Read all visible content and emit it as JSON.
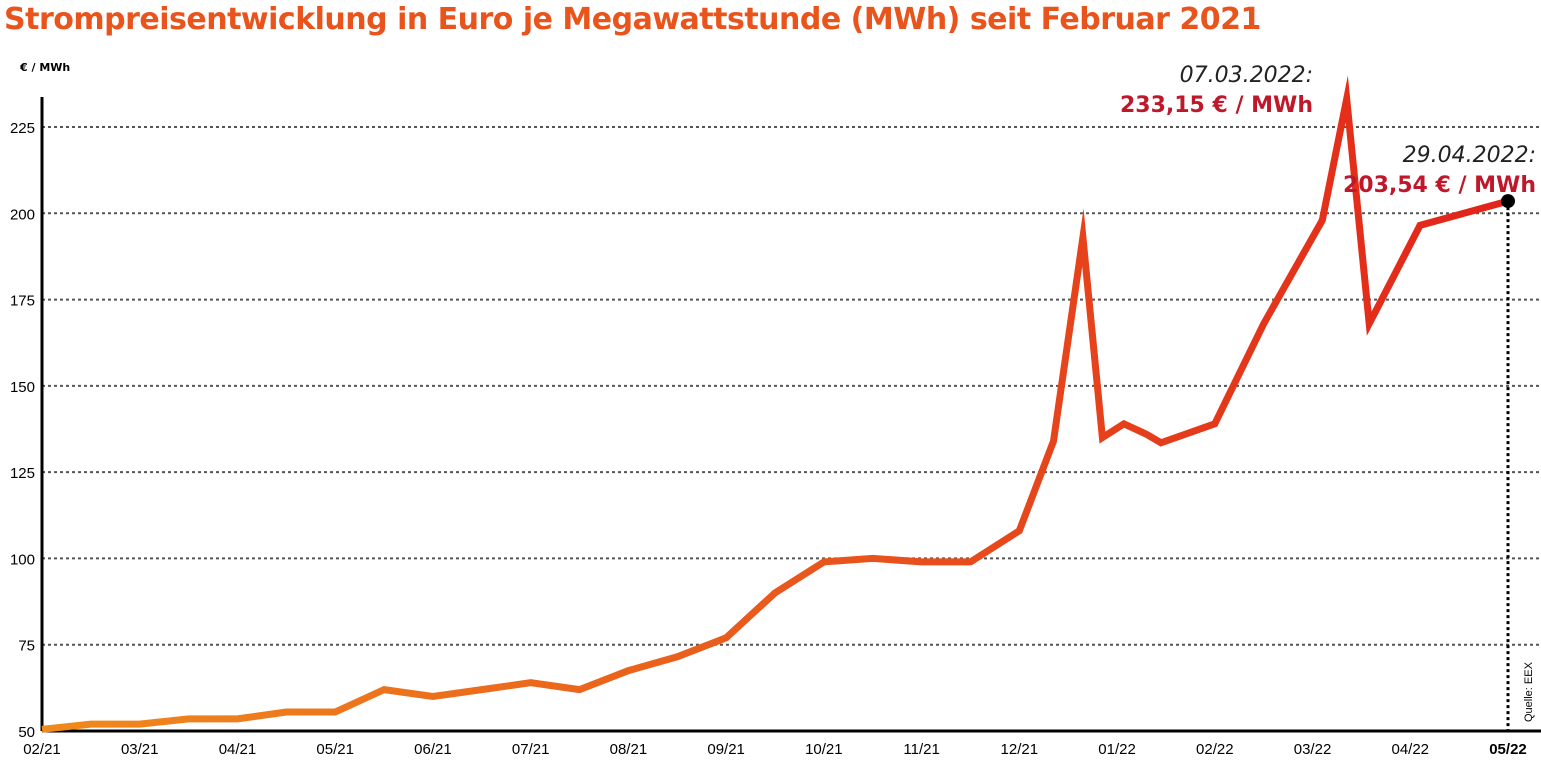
{
  "chart_data": {
    "type": "line",
    "title": "Strompreisentwicklung in Euro je Megawattstunde (MWh) seit Februar 2021",
    "ylabel": "€ / MWh",
    "xlabel": "",
    "ylim": [
      50,
      236
    ],
    "yticks": [
      "50",
      "75",
      "100",
      "125",
      "150",
      "175",
      "200",
      "225"
    ],
    "ytick_values": [
      50,
      75,
      100,
      125,
      150,
      175,
      200,
      225
    ],
    "xticks": [
      "02/21",
      "03/21",
      "04/21",
      "05/21",
      "06/21",
      "07/21",
      "08/21",
      "09/21",
      "10/21",
      "11/21",
      "12/21",
      "01/22",
      "02/22",
      "03/22",
      "04/22",
      "05/22"
    ],
    "grid": "horizontal dashed",
    "line_color_start": "#f08a1c",
    "line_color_end": "#e2231a",
    "series": [
      {
        "x": [
          0,
          0.5,
          1,
          1.5,
          2,
          2.5,
          3,
          3.5,
          4,
          4.5,
          5,
          5.5,
          6,
          6.5,
          7,
          7.5,
          8,
          8.5,
          9,
          9.5,
          10,
          10.35,
          10.65,
          10.85,
          11.07,
          11.3,
          11.45,
          12.0,
          12.5,
          13.1,
          13.35,
          13.58,
          14.1,
          15.0
        ],
        "y": [
          50.5,
          52,
          52,
          53.5,
          53.5,
          55.5,
          55.5,
          62,
          60,
          62,
          64,
          62,
          67.5,
          71.5,
          77,
          90,
          99,
          100,
          99,
          99,
          108,
          134,
          193,
          135,
          139,
          136,
          133.5,
          139,
          168,
          198,
          233.15,
          168,
          196.5,
          203.54
        ]
      }
    ],
    "annotations": [
      {
        "date": "07.03.2022:",
        "value": "233,15 € / MWh",
        "x": 13.35,
        "y": 233.15
      },
      {
        "date": "29.04.2022:",
        "value": "203,54 € / MWh",
        "x": 15.0,
        "y": 203.54
      }
    ],
    "source": "Quelle: EEX",
    "accent_title": "#e8541c",
    "accent_value": "#c0182b"
  }
}
